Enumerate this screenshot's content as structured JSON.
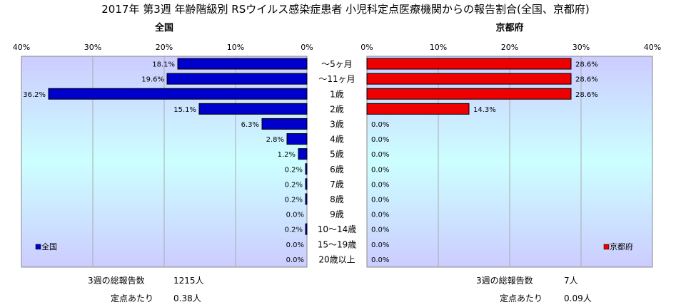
{
  "title": "2017年 第3週 年齢階級別 RSウイルス感染症患者 小児科定点医療機関からの報告割合(全国、京都府)",
  "age_groups": [
    "～5ヶ月",
    "～11ヶ月",
    "1歳",
    "2歳",
    "3歳",
    "4歳",
    "5歳",
    "6歳",
    "7歳",
    "8歳",
    "9歳",
    "10～14歳",
    "15～19歳",
    "20歳以上"
  ],
  "chart_data": [
    {
      "type": "bar",
      "title": "全国",
      "orientation": "horizontal-reversed",
      "categories": [
        "～5ヶ月",
        "～11ヶ月",
        "1歳",
        "2歳",
        "3歳",
        "4歳",
        "5歳",
        "6歳",
        "7歳",
        "8歳",
        "9歳",
        "10～14歳",
        "15～19歳",
        "20歳以上"
      ],
      "series": [
        {
          "name": "全国",
          "values": [
            18.1,
            19.6,
            36.2,
            15.1,
            6.3,
            2.8,
            1.2,
            0.2,
            0.2,
            0.2,
            0.0,
            0.2,
            0.0,
            0.0
          ]
        }
      ],
      "value_labels": [
        "18.1%",
        "19.6%",
        "36.2%",
        "15.1%",
        "6.3%",
        "2.8%",
        "1.2%",
        "0.2%",
        "0.2%",
        "0.2%",
        "0.0%",
        "0.2%",
        "0.0%",
        "0.0%"
      ],
      "xlim": [
        40,
        0
      ],
      "ticks": [
        "40%",
        "30%",
        "20%",
        "10%",
        "0%"
      ],
      "color": "#0000cc",
      "legend": "bottom-left",
      "grid": true
    },
    {
      "type": "bar",
      "title": "京都府",
      "orientation": "horizontal",
      "categories": [
        "～5ヶ月",
        "～11ヶ月",
        "1歳",
        "2歳",
        "3歳",
        "4歳",
        "5歳",
        "6歳",
        "7歳",
        "8歳",
        "9歳",
        "10～14歳",
        "15～19歳",
        "20歳以上"
      ],
      "series": [
        {
          "name": "京都府",
          "values": [
            28.6,
            28.6,
            28.6,
            14.3,
            0.0,
            0.0,
            0.0,
            0.0,
            0.0,
            0.0,
            0.0,
            0.0,
            0.0,
            0.0
          ]
        }
      ],
      "value_labels": [
        "28.6%",
        "28.6%",
        "28.6%",
        "14.3%",
        "0.0%",
        "0.0%",
        "0.0%",
        "0.0%",
        "0.0%",
        "0.0%",
        "0.0%",
        "0.0%",
        "0.0%",
        "0.0%"
      ],
      "xlim": [
        0,
        40
      ],
      "ticks": [
        "0%",
        "10%",
        "20%",
        "30%",
        "40%"
      ],
      "color": "#ee0000",
      "legend": "bottom-right",
      "grid": true
    }
  ],
  "stats": {
    "national": {
      "total_label": "3週の総報告数",
      "total_value": "1215人",
      "per_label": "定点あたり",
      "per_value": "0.38人"
    },
    "kyoto": {
      "total_label": "3週の総報告数",
      "total_value": "7人",
      "per_label": "定点あたり",
      "per_value": "0.09人"
    }
  }
}
